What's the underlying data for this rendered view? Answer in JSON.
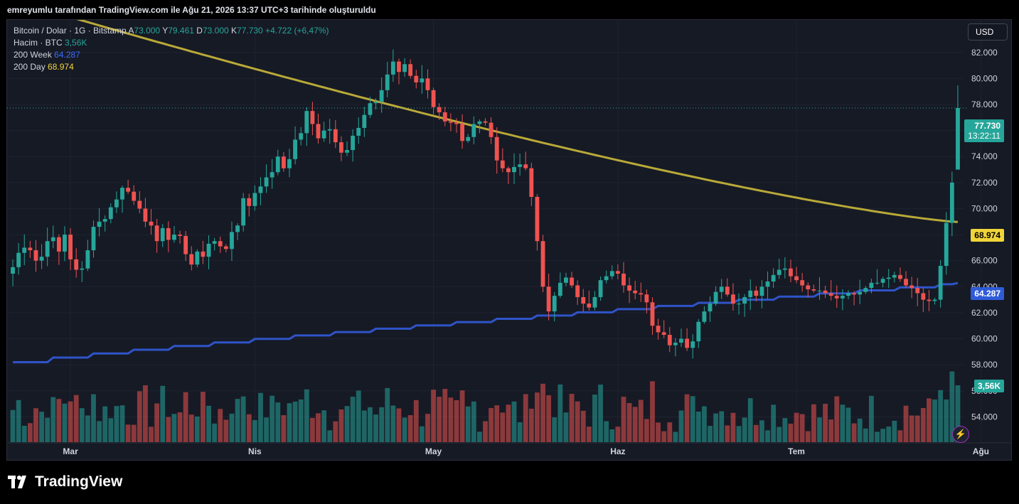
{
  "caption": "emreyumlu tarafından TradingView.com ile Ağu 21, 2026 13:37 UTC+3 tarihinde oluşturuldu",
  "brand": "TradingView",
  "currency_button": "USD",
  "legend": {
    "symbol": "Bitcoin / Dolar · 1G · Bitstamp",
    "open_label": "A",
    "open": "73.000",
    "high_label": "Y",
    "high": "79.461",
    "low_label": "D",
    "low": "73.000",
    "close_label": "K",
    "close": "77.730",
    "change": "+4.722 (+6,47%)",
    "volume_label": "Hacim · BTC",
    "volume": "3,56K",
    "ma_week_label": "200 Week",
    "ma_week": "64.287",
    "ma_day_label": "200 Day",
    "ma_day": "68.974"
  },
  "price_tags": {
    "last_price": "77.730",
    "countdown": "13:22:11",
    "ma_day": "68.974",
    "ma_week": "64.287",
    "volume": "3,56K"
  },
  "colors": {
    "up": "#26a69a",
    "down": "#ef5350",
    "ma_week": "#2f54c9",
    "ma_day": "#b9a938",
    "background": "#161a25"
  },
  "icons": {
    "flash": "lightning-icon",
    "logo": "tradingview-logo-icon"
  },
  "chart_data": {
    "type": "candlestick",
    "y_axis_labels": [
      "82.000",
      "80.000",
      "78.000",
      "76.000",
      "74.000",
      "72.000",
      "70.000",
      "68.000",
      "66.000",
      "64.000",
      "62.000",
      "60.000",
      "58.000",
      "56.000",
      "54.000"
    ],
    "ylim": [
      52000,
      84500
    ],
    "x_axis_labels": [
      "Mar",
      "Nis",
      "May",
      "Haz",
      "Tem",
      "Ağu"
    ],
    "x_axis_label_index": [
      10,
      42,
      73,
      105,
      136,
      168
    ],
    "last_bar": {
      "open": 73000,
      "high": 79461,
      "low": 73000,
      "close": 77730
    },
    "close": [
      65500,
      66600,
      67000,
      66800,
      66000,
      66300,
      67500,
      67800,
      66700,
      68000,
      66100,
      65300,
      65400,
      66800,
      68600,
      69000,
      69200,
      70100,
      70700,
      71600,
      71300,
      70600,
      70000,
      69000,
      68700,
      67500,
      68500,
      67600,
      68000,
      67900,
      66500,
      65700,
      66700,
      66300,
      67300,
      67500,
      67100,
      66900,
      68200,
      68700,
      70800,
      70200,
      71200,
      71700,
      72400,
      72800,
      74000,
      73100,
      73800,
      75300,
      75800,
      77500,
      76500,
      75400,
      76000,
      76100,
      75100,
      74300,
      74500,
      75600,
      76200,
      77200,
      78100,
      78200,
      79100,
      80300,
      81300,
      80500,
      81100,
      80200,
      79700,
      80000,
      79100,
      77800,
      77400,
      76700,
      76600,
      76500,
      75200,
      75500,
      76500,
      76700,
      76600,
      75500,
      73700,
      73100,
      72800,
      73200,
      73400,
      73100,
      70900,
      67500,
      64000,
      62100,
      63300,
      64300,
      64700,
      64100,
      63200,
      62700,
      62400,
      63200,
      64500,
      64800,
      65200,
      65000,
      64100,
      63700,
      63500,
      63400,
      62800,
      61000,
      60500,
      60300,
      59500,
      59700,
      60000,
      59300,
      59800,
      61300,
      62100,
      62700,
      63600,
      64000,
      63400,
      62700,
      62700,
      63200,
      63700,
      63300,
      64000,
      64400,
      64900,
      65300,
      65400,
      64800,
      64500,
      64100,
      63800,
      63700,
      63700,
      63500,
      63300,
      63100,
      63300,
      63500,
      63400,
      63600,
      63900,
      64300,
      64300,
      64600,
      64700,
      64900,
      64600,
      64100,
      63900,
      63500,
      63000,
      62900,
      63000,
      65600,
      68900,
      72000,
      77730
    ],
    "ma_200_day_range": [
      86000,
      68974
    ],
    "ma_200_week_range": [
      58200,
      64287
    ],
    "volume_peak": "3,56K"
  }
}
